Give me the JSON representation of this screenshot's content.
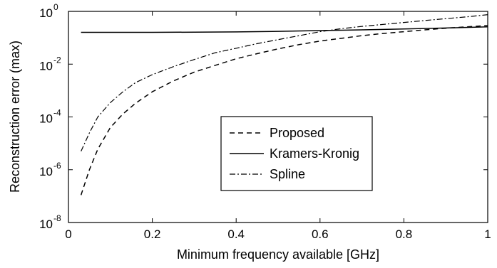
{
  "chart_data": {
    "type": "line",
    "xlabel": "Minimum frequency available [GHz]",
    "ylabel": "Reconstruction error (max)",
    "xlim": [
      0,
      1
    ],
    "ylim": [
      1e-08,
      1
    ],
    "yscale": "log",
    "grid": false,
    "legend_position": "center-right",
    "x_ticks": [
      "0",
      "0.2",
      "0.4",
      "0.6",
      "0.8",
      "1"
    ],
    "y_ticks": [
      {
        "base": "10",
        "exp": "0"
      },
      {
        "base": "10",
        "exp": "-2"
      },
      {
        "base": "10",
        "exp": "-4"
      },
      {
        "base": "10",
        "exp": "-6"
      },
      {
        "base": "10",
        "exp": "-8"
      }
    ],
    "series": [
      {
        "name": "Proposed",
        "style": "dashed",
        "color": "#000000",
        "x": [
          0.03,
          0.05,
          0.07,
          0.1,
          0.13,
          0.16,
          0.2,
          0.25,
          0.3,
          0.35,
          0.4,
          0.45,
          0.5,
          0.55,
          0.6,
          0.65,
          0.7,
          0.75,
          0.8,
          0.85,
          0.9,
          0.95,
          1.0
        ],
        "y": [
          1.1e-07,
          1e-06,
          6e-06,
          4e-05,
          0.00013,
          0.00033,
          0.0009,
          0.0023,
          0.005,
          0.009,
          0.016,
          0.025,
          0.038,
          0.055,
          0.075,
          0.095,
          0.12,
          0.145,
          0.17,
          0.2,
          0.23,
          0.26,
          0.29
        ]
      },
      {
        "name": "Kramers-Kronig",
        "style": "solid",
        "color": "#000000",
        "x": [
          0.03,
          0.1,
          0.2,
          0.3,
          0.4,
          0.5,
          0.6,
          0.7,
          0.8,
          0.9,
          1.0
        ],
        "y": [
          0.16,
          0.16,
          0.161,
          0.163,
          0.167,
          0.175,
          0.187,
          0.2,
          0.215,
          0.235,
          0.26
        ]
      },
      {
        "name": "Spline",
        "style": "dashdot",
        "color": "#000000",
        "x": [
          0.03,
          0.05,
          0.07,
          0.1,
          0.13,
          0.16,
          0.2,
          0.25,
          0.3,
          0.35,
          0.4,
          0.45,
          0.5,
          0.55,
          0.6,
          0.65,
          0.7,
          0.75,
          0.8,
          0.85,
          0.9,
          0.95,
          1.0
        ],
        "y": [
          5e-06,
          2.5e-05,
          0.0001,
          0.00035,
          0.0009,
          0.002,
          0.004,
          0.008,
          0.015,
          0.027,
          0.04,
          0.06,
          0.085,
          0.12,
          0.17,
          0.22,
          0.27,
          0.32,
          0.38,
          0.45,
          0.53,
          0.62,
          0.75
        ]
      }
    ]
  }
}
